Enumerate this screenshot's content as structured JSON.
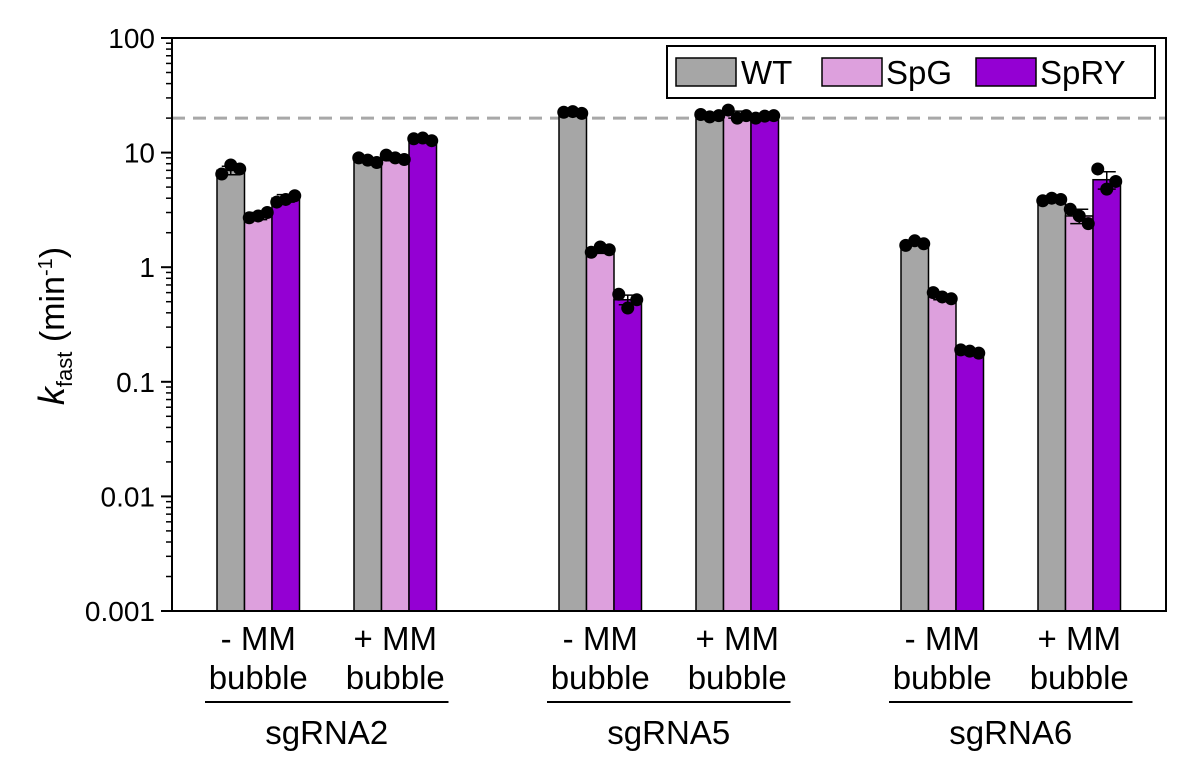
{
  "chart_data": {
    "type": "bar",
    "yscale": "log",
    "ylim": [
      0.001,
      100
    ],
    "ylabel": {
      "symbol": "k",
      "subscript": "fast",
      "unit_open": " (min",
      "unit_exp": "-1",
      "unit_close": ")"
    },
    "yticks": [
      {
        "value": 0.001,
        "label": "0.001"
      },
      {
        "value": 0.01,
        "label": "0.01"
      },
      {
        "value": 0.1,
        "label": "0.1"
      },
      {
        "value": 1,
        "label": "1"
      },
      {
        "value": 10,
        "label": "10"
      },
      {
        "value": 100,
        "label": "100"
      }
    ],
    "reference_line": 20,
    "legend": {
      "position": "top-right",
      "entries": [
        {
          "label": "WT",
          "color": "#a6a6a6"
        },
        {
          "label": "SpG",
          "color": "#dda0dd"
        },
        {
          "label": "SpRY",
          "color": "#9400d3"
        }
      ]
    },
    "series": [
      {
        "name": "WT",
        "color": "#a6a6a6"
      },
      {
        "name": "SpG",
        "color": "#dda0dd"
      },
      {
        "name": "SpRY",
        "color": "#9400d3"
      }
    ],
    "groups": [
      {
        "name": "sgRNA2",
        "conditions": [
          {
            "line1": "- MM",
            "line2": "bubble",
            "values": [
              7.0,
              2.8,
              4.0
            ],
            "errors": [
              0.6,
              0.2,
              0.3
            ],
            "points": [
              [
                6.5,
                7.8,
                7.2
              ],
              [
                2.7,
                2.8,
                3.0
              ],
              [
                3.7,
                3.9,
                4.2
              ]
            ]
          },
          {
            "line1": "+ MM",
            "line2": "bubble",
            "values": [
              8.6,
              9.0,
              13.0
            ],
            "errors": [
              0.4,
              0.5,
              0.4
            ],
            "points": [
              [
                9.0,
                8.6,
                8.2
              ],
              [
                9.5,
                9.0,
                8.7
              ],
              [
                13.2,
                13.4,
                12.7
              ]
            ]
          }
        ]
      },
      {
        "name": "sgRNA5",
        "conditions": [
          {
            "line1": "- MM",
            "line2": "bubble",
            "values": [
              22.0,
              1.4,
              0.52
            ],
            "errors": [
              0.5,
              0.08,
              0.05
            ],
            "points": [
              [
                22.5,
                22.8,
                22.0
              ],
              [
                1.35,
                1.5,
                1.42
              ],
              [
                0.58,
                0.44,
                0.52
              ]
            ]
          },
          {
            "line1": "+ MM",
            "line2": "bubble",
            "values": [
              21.0,
              21.5,
              20.5
            ],
            "errors": [
              0.6,
              1.5,
              0.5
            ],
            "points": [
              [
                21.5,
                20.5,
                21.0
              ],
              [
                23.5,
                20.0,
                21.0
              ],
              [
                20.0,
                20.8,
                21.0
              ]
            ]
          }
        ]
      },
      {
        "name": "sgRNA6",
        "conditions": [
          {
            "line1": "- MM",
            "line2": "bubble",
            "values": [
              1.6,
              0.55,
              0.18
            ],
            "errors": [
              0.05,
              0.03,
              0.008
            ],
            "points": [
              [
                1.55,
                1.7,
                1.6
              ],
              [
                0.6,
                0.55,
                0.53
              ],
              [
                0.19,
                0.185,
                0.178
              ]
            ]
          },
          {
            "line1": "+ MM",
            "line2": "bubble",
            "values": [
              3.9,
              2.8,
              5.8
            ],
            "errors": [
              0.15,
              0.4,
              1.0
            ],
            "points": [
              [
                3.8,
                4.0,
                3.9
              ],
              [
                3.2,
                2.8,
                2.4
              ],
              [
                7.2,
                4.8,
                5.6
              ]
            ]
          }
        ]
      }
    ]
  }
}
